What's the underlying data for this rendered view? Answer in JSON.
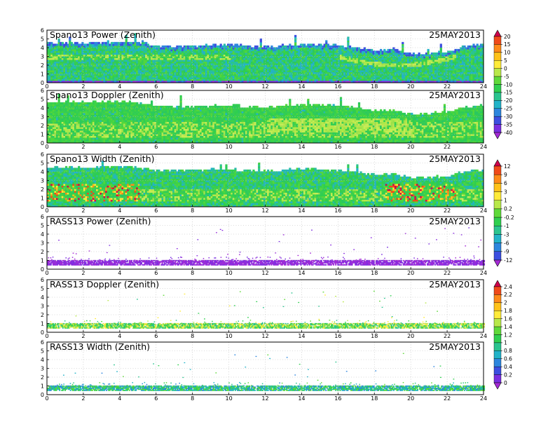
{
  "chart_data": [
    {
      "type": "heatmap",
      "title": "Spano13 Power (Zenith)",
      "date": "25MAY2013",
      "xlim": [
        0,
        24
      ],
      "ylim": [
        0,
        6
      ],
      "x_ticks": [
        "0",
        "2",
        "4",
        "6",
        "8",
        "10",
        "12",
        "14",
        "16",
        "18",
        "20",
        "22",
        "24"
      ],
      "y_ticks": [
        "0",
        "1",
        "2",
        "3",
        "4",
        "5",
        "6"
      ],
      "grid": true,
      "profile": [
        [
          0,
          4.5
        ],
        [
          2,
          4.4
        ],
        [
          4,
          4.6
        ],
        [
          5,
          4.5
        ],
        [
          6,
          4.1
        ],
        [
          8,
          4.1
        ],
        [
          10,
          4.3
        ],
        [
          12,
          4.0
        ],
        [
          14,
          4.3
        ],
        [
          16,
          4.2
        ],
        [
          17,
          3.9
        ],
        [
          18,
          3.6
        ],
        [
          19,
          3.8
        ],
        [
          20,
          3.2
        ],
        [
          21,
          3.3
        ],
        [
          22,
          3.4
        ],
        [
          23,
          4.1
        ],
        [
          24,
          4.3
        ]
      ],
      "colorbar": "power"
    },
    {
      "type": "heatmap",
      "title": "Spano13 Doppler (Zenith)",
      "date": "25MAY2013",
      "xlim": [
        0,
        24
      ],
      "ylim": [
        0,
        6
      ],
      "x_ticks": [
        "0",
        "2",
        "4",
        "6",
        "8",
        "10",
        "12",
        "14",
        "16",
        "18",
        "20",
        "22",
        "24"
      ],
      "y_ticks": [
        "0",
        "1",
        "2",
        "3",
        "4",
        "5",
        "6"
      ],
      "grid": true,
      "profile": [
        [
          0,
          4.6
        ],
        [
          2,
          4.6
        ],
        [
          4,
          4.7
        ],
        [
          5,
          4.5
        ],
        [
          6,
          4.1
        ],
        [
          8,
          4.1
        ],
        [
          10,
          4.2
        ],
        [
          12,
          4.0
        ],
        [
          14,
          4.3
        ],
        [
          16,
          4.2
        ],
        [
          17,
          3.9
        ],
        [
          18,
          3.6
        ],
        [
          19,
          3.7
        ],
        [
          20,
          3.2
        ],
        [
          21,
          3.3
        ],
        [
          22,
          3.5
        ],
        [
          23,
          4.0
        ],
        [
          24,
          4.3
        ]
      ],
      "colorbar": null
    },
    {
      "type": "heatmap",
      "title": "Spano13 Width (Zenith)",
      "date": "25MAY2013",
      "xlim": [
        0,
        24
      ],
      "ylim": [
        0,
        6
      ],
      "x_ticks": [
        "0",
        "2",
        "4",
        "6",
        "8",
        "10",
        "12",
        "14",
        "16",
        "18",
        "20",
        "22",
        "24"
      ],
      "y_ticks": [
        "0",
        "1",
        "2",
        "3",
        "4",
        "5",
        "6"
      ],
      "grid": true,
      "profile": [
        [
          0,
          4.5
        ],
        [
          2,
          4.4
        ],
        [
          4,
          4.5
        ],
        [
          5,
          4.4
        ],
        [
          6,
          4.1
        ],
        [
          8,
          4.1
        ],
        [
          10,
          4.2
        ],
        [
          12,
          4.0
        ],
        [
          14,
          4.3
        ],
        [
          16,
          4.1
        ],
        [
          17,
          3.9
        ],
        [
          18,
          3.6
        ],
        [
          19,
          3.7
        ],
        [
          20,
          3.2
        ],
        [
          21,
          3.3
        ],
        [
          22,
          3.4
        ],
        [
          23,
          4.0
        ],
        [
          24,
          4.2
        ]
      ],
      "colorbar": "width"
    },
    {
      "type": "heatmap",
      "title": "RASS13 Power (Zenith)",
      "date": "25MAY2013",
      "xlim": [
        0,
        24
      ],
      "ylim": [
        0,
        6
      ],
      "x_ticks": [
        "0",
        "2",
        "4",
        "6",
        "8",
        "10",
        "12",
        "14",
        "16",
        "18",
        "20",
        "22",
        "24"
      ],
      "y_ticks": [
        "0",
        "1",
        "2",
        "3",
        "4",
        "5",
        "6"
      ],
      "grid": true,
      "band": [
        0.45,
        0.95
      ],
      "colorbar": null
    },
    {
      "type": "heatmap",
      "title": "RASS13 Doppler (Zenith)",
      "date": "25MAY2013",
      "xlim": [
        0,
        24
      ],
      "ylim": [
        0,
        6
      ],
      "x_ticks": [
        "0",
        "2",
        "4",
        "6",
        "8",
        "10",
        "12",
        "14",
        "16",
        "18",
        "20",
        "22",
        "24"
      ],
      "y_ticks": [
        "0",
        "1",
        "2",
        "3",
        "4",
        "5",
        "6"
      ],
      "grid": true,
      "band": [
        0.45,
        0.95
      ],
      "colorbar": "rass"
    },
    {
      "type": "heatmap",
      "title": "RASS13 Width (Zenith)",
      "date": "25MAY2013",
      "xlim": [
        0,
        24
      ],
      "ylim": [
        0,
        6
      ],
      "x_ticks": [
        "0",
        "2",
        "4",
        "6",
        "8",
        "10",
        "12",
        "14",
        "16",
        "18",
        "20",
        "22",
        "24"
      ],
      "y_ticks": [
        "0",
        "1",
        "2",
        "3",
        "4",
        "5",
        "6"
      ],
      "grid": true,
      "band": [
        0.45,
        0.95
      ],
      "colorbar": null
    }
  ],
  "colorbars": {
    "power": {
      "labels": [
        "20",
        "15",
        "10",
        "5",
        "0",
        "-5",
        "-10",
        "-15",
        "-20",
        "-25",
        "-30",
        "-35",
        "-40"
      ],
      "colors": [
        "#d1004b",
        "#f04a1a",
        "#ff8a1a",
        "#ffc21a",
        "#ffeb3a",
        "#b8e84a",
        "#5fd93a",
        "#2fcf4f",
        "#2bc48f",
        "#22b3c8",
        "#2d86dd",
        "#3c4fe0",
        "#7a2fe0",
        "#a42ad6"
      ]
    },
    "width": {
      "labels": [
        "12",
        "9",
        "6",
        "3",
        "1",
        "0.2",
        "-0.2",
        "-1",
        "-3",
        "-6",
        "-9",
        "-12"
      ],
      "colors": [
        "#d1004b",
        "#f04a1a",
        "#ff8a1a",
        "#ffc21a",
        "#ffeb3a",
        "#b8e84a",
        "#5fd93a",
        "#2fcf4f",
        "#2bc48f",
        "#22b3c8",
        "#2d86dd",
        "#3c4fe0",
        "#a42ad6"
      ]
    },
    "rass": {
      "labels": [
        "2.4",
        "2.2",
        "2",
        "1.8",
        "1.6",
        "1.4",
        "1.2",
        "1",
        "0.8",
        "0.6",
        "0.4",
        "0.2",
        "0"
      ],
      "colors": [
        "#d1004b",
        "#f04a1a",
        "#ff8a1a",
        "#ffc21a",
        "#ffeb3a",
        "#b8e84a",
        "#5fd93a",
        "#2fcf4f",
        "#2bc48f",
        "#22b3c8",
        "#2d86dd",
        "#3c4fe0",
        "#7a2fe0",
        "#a42ad6"
      ]
    }
  }
}
